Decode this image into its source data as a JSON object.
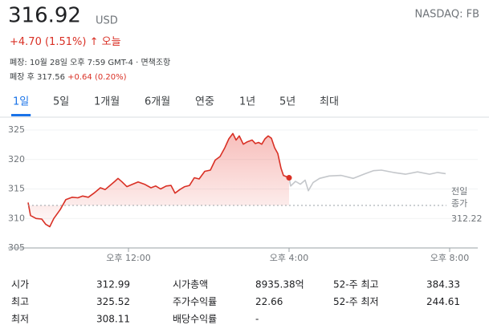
{
  "header": {
    "price": "316.92",
    "currency": "USD",
    "exchange": "NASDAQ: FB",
    "change": "+4.70 (1.51%)",
    "arrow": "↑",
    "today": "오늘",
    "closed_note": "폐장: 10월 28일 오후 7:59 GMT-4 · 면책조항",
    "after_hours_label": "폐장 후 317.56",
    "after_hours_change": "+0.64 (0.20%)"
  },
  "tabs": [
    "1일",
    "5일",
    "1개월",
    "6개월",
    "연중",
    "1년",
    "5년",
    "최대"
  ],
  "selected_tab": 0,
  "chart_data": {
    "type": "line",
    "xlim": [
      9.5,
      20.5
    ],
    "xticks": [
      {
        "value": 12,
        "label": "오후 12:00"
      },
      {
        "value": 16,
        "label": "오후 4:00"
      },
      {
        "value": 20,
        "label": "오후 8:00"
      }
    ],
    "ylim": [
      305,
      326.5
    ],
    "yticks": [
      305,
      310,
      315,
      320,
      325
    ],
    "grid": true,
    "prev_close": 312.22,
    "prev_close_label": [
      "전일",
      "종가"
    ],
    "series": [
      {
        "color": "#d93025",
        "x": [
          9.5,
          9.56,
          9.7,
          9.84,
          9.94,
          10.04,
          10.14,
          10.3,
          10.44,
          10.6,
          10.74,
          10.86,
          11.0,
          11.14,
          11.3,
          11.42,
          11.54,
          11.66,
          11.74,
          11.84,
          11.96,
          12.1,
          12.24,
          12.4,
          12.56,
          12.68,
          12.8,
          12.94,
          13.06,
          13.16,
          13.28,
          13.4,
          13.52,
          13.64,
          13.76,
          13.9,
          14.04,
          14.16,
          14.28,
          14.4,
          14.5,
          14.6,
          14.68,
          14.76,
          14.86,
          14.96,
          15.08,
          15.16,
          15.24,
          15.32,
          15.4,
          15.48,
          15.56,
          15.64,
          15.72,
          15.8,
          15.86,
          16.0
        ],
        "values": [
          312.7,
          310.5,
          310.0,
          309.9,
          309.0,
          308.6,
          310.0,
          311.5,
          313.2,
          313.6,
          313.5,
          313.8,
          313.6,
          314.3,
          315.2,
          314.9,
          315.6,
          316.3,
          316.8,
          316.2,
          315.4,
          315.8,
          316.2,
          315.8,
          315.2,
          315.5,
          315.0,
          315.5,
          315.6,
          314.3,
          314.9,
          315.4,
          315.6,
          316.9,
          316.7,
          318.0,
          318.2,
          319.9,
          320.5,
          322.0,
          323.5,
          324.4,
          323.3,
          324.0,
          322.6,
          323.0,
          323.3,
          322.7,
          322.9,
          322.6,
          323.5,
          324.0,
          323.6,
          322.0,
          321.0,
          318.5,
          317.3,
          316.9
        ]
      },
      {
        "color": "#c4c7cb",
        "x": [
          16.0,
          16.04,
          16.16,
          16.28,
          16.4,
          16.48,
          16.6,
          16.76,
          17.0,
          17.3,
          17.6,
          17.9,
          18.1,
          18.3,
          18.6,
          18.9,
          19.2,
          19.5,
          19.7,
          19.9
        ],
        "values": [
          316.9,
          315.5,
          316.3,
          315.8,
          316.5,
          314.7,
          316.1,
          316.8,
          317.2,
          317.3,
          316.8,
          317.6,
          318.1,
          318.2,
          317.8,
          317.5,
          317.9,
          317.5,
          317.8,
          317.6
        ]
      }
    ]
  },
  "stats": {
    "rows": [
      [
        "시가",
        "312.99",
        "시가총액",
        "8935.38억",
        "52-주 최고",
        "384.33"
      ],
      [
        "최고",
        "325.52",
        "주가수익률",
        "22.66",
        "52-주 최저",
        "244.61"
      ],
      [
        "최저",
        "308.11",
        "배당수익률",
        "-"
      ]
    ]
  }
}
